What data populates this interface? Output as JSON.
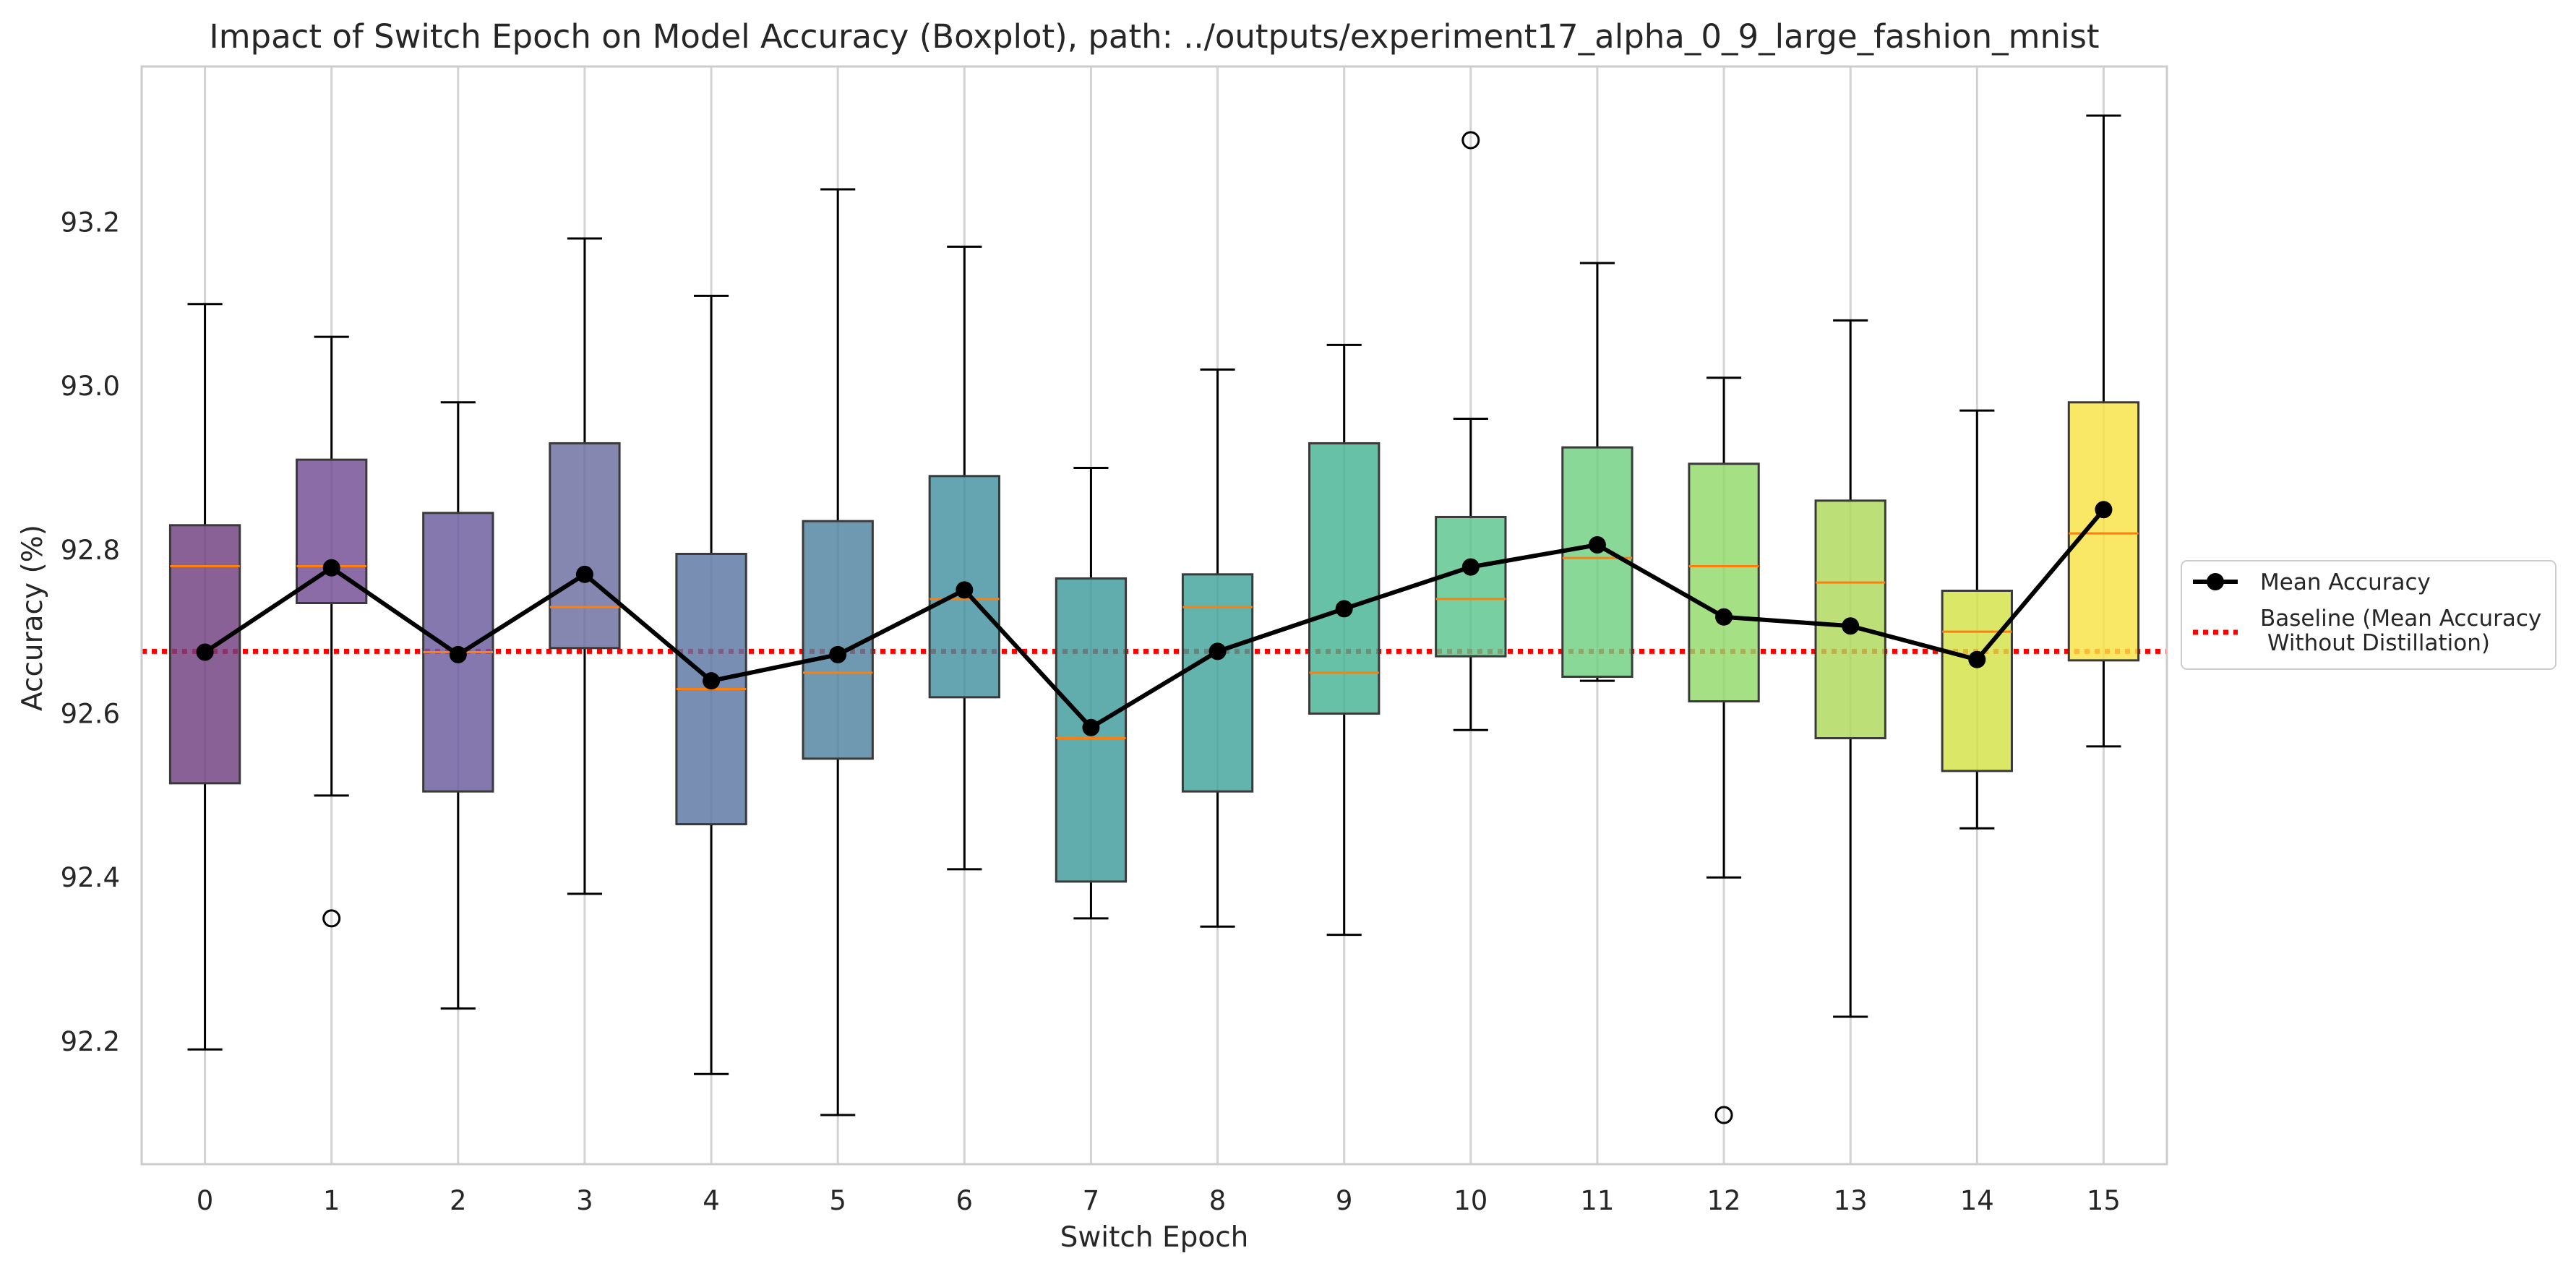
{
  "chart_data": {
    "type": "box",
    "title": "Impact of Switch Epoch on Model Accuracy (Boxplot), path: ../outputs/experiment17_alpha_0_9_large_fashion_mnist",
    "xlabel": "Switch Epoch",
    "ylabel": "Accuracy (%)",
    "categories": [
      "0",
      "1",
      "2",
      "3",
      "4",
      "5",
      "6",
      "7",
      "8",
      "9",
      "10",
      "11",
      "12",
      "13",
      "14",
      "15"
    ],
    "ylim": [
      92.05,
      93.39
    ],
    "yticks": [
      92.2,
      92.4,
      92.6,
      92.8,
      93.0,
      93.2
    ],
    "ytick_labels": [
      "92.2",
      "92.4",
      "92.6",
      "92.8",
      "93.0",
      "93.2"
    ],
    "grid": "vertical",
    "boxes": [
      {
        "whisker_low": 92.19,
        "q1": 92.515,
        "median": 92.78,
        "q3": 92.83,
        "whisker_high": 93.1,
        "outliers": []
      },
      {
        "whisker_low": 92.5,
        "q1": 92.735,
        "median": 92.78,
        "q3": 92.91,
        "whisker_high": 93.06,
        "outliers": [
          92.35
        ]
      },
      {
        "whisker_low": 92.24,
        "q1": 92.505,
        "median": 92.675,
        "q3": 92.845,
        "whisker_high": 92.98,
        "outliers": []
      },
      {
        "whisker_low": 92.38,
        "q1": 92.68,
        "median": 92.73,
        "q3": 92.93,
        "whisker_high": 93.18,
        "outliers": []
      },
      {
        "whisker_low": 92.16,
        "q1": 92.465,
        "median": 92.63,
        "q3": 92.795,
        "whisker_high": 93.11,
        "outliers": []
      },
      {
        "whisker_low": 92.11,
        "q1": 92.545,
        "median": 92.65,
        "q3": 92.835,
        "whisker_high": 93.24,
        "outliers": []
      },
      {
        "whisker_low": 92.41,
        "q1": 92.62,
        "median": 92.74,
        "q3": 92.89,
        "whisker_high": 93.17,
        "outliers": []
      },
      {
        "whisker_low": 92.35,
        "q1": 92.395,
        "median": 92.57,
        "q3": 92.765,
        "whisker_high": 92.9,
        "outliers": []
      },
      {
        "whisker_low": 92.34,
        "q1": 92.505,
        "median": 92.73,
        "q3": 92.77,
        "whisker_high": 93.02,
        "outliers": []
      },
      {
        "whisker_low": 92.33,
        "q1": 92.6,
        "median": 92.65,
        "q3": 92.93,
        "whisker_high": 93.05,
        "outliers": []
      },
      {
        "whisker_low": 92.58,
        "q1": 92.67,
        "median": 92.74,
        "q3": 92.84,
        "whisker_high": 92.96,
        "outliers": [
          93.3
        ]
      },
      {
        "whisker_low": 92.64,
        "q1": 92.645,
        "median": 92.79,
        "q3": 92.925,
        "whisker_high": 93.15,
        "outliers": []
      },
      {
        "whisker_low": 92.4,
        "q1": 92.615,
        "median": 92.78,
        "q3": 92.905,
        "whisker_high": 93.01,
        "outliers": [
          92.11
        ]
      },
      {
        "whisker_low": 92.23,
        "q1": 92.57,
        "median": 92.76,
        "q3": 92.86,
        "whisker_high": 93.08,
        "outliers": []
      },
      {
        "whisker_low": 92.46,
        "q1": 92.53,
        "median": 92.7,
        "q3": 92.75,
        "whisker_high": 92.97,
        "outliers": []
      },
      {
        "whisker_low": 92.56,
        "q1": 92.665,
        "median": 92.82,
        "q3": 92.98,
        "whisker_high": 93.33,
        "outliers": []
      }
    ],
    "box_colors": [
      "#703e7f",
      "#724c94",
      "#6a5a9e",
      "#6a6c9f",
      "#5c75a2",
      "#4e82a0",
      "#4391a0",
      "#3e9b9b",
      "#40a49a",
      "#45b393",
      "#5ac48d",
      "#70cf81",
      "#92d96a",
      "#aed85a",
      "#d3e246",
      "#f8e343"
    ],
    "mean_series": {
      "name": "Mean Accuracy",
      "values": [
        92.675,
        92.778,
        92.672,
        92.77,
        92.64,
        92.672,
        92.751,
        92.583,
        92.676,
        92.728,
        92.779,
        92.806,
        92.718,
        92.707,
        92.666,
        92.849
      ],
      "color": "#000000"
    },
    "baseline": {
      "name": "Baseline (Mean Accuracy\n Without Distillation)",
      "value": 92.676,
      "color": "#ff0000"
    },
    "median_color": "#ff7f0e",
    "legend_position": "outside right"
  }
}
